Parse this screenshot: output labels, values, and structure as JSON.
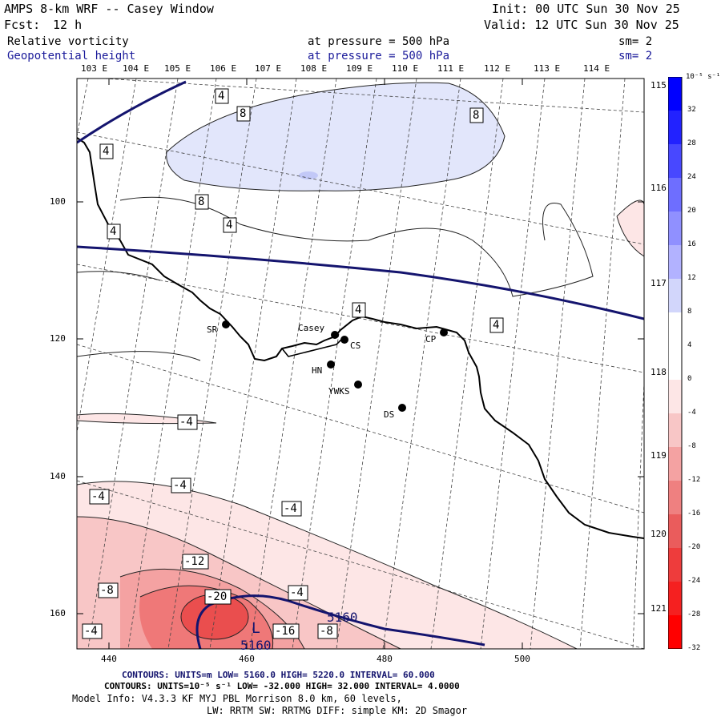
{
  "header": {
    "model": "AMPS 8-km WRF -- Casey Window",
    "init": "Init: 00 UTC Sun 30 Nov 25",
    "fcst_label": "Fcst:",
    "fcst_value": "12 h",
    "valid": "Valid: 12 UTC Sun 30 Nov 25",
    "field1": "Relative vorticity",
    "field1_level": "at pressure =  500 hPa",
    "field1_sm": "sm= 2",
    "field2": "Geopotential height",
    "field2_level": "at pressure =  500 hPa",
    "field2_sm": "sm= 2"
  },
  "longitude_labels_top": [
    "103 E",
    "104 E",
    "105 E",
    "106 E",
    "107 E",
    "108 E",
    "109 E",
    "110 E",
    "111 E",
    "112 E",
    "113 E",
    "114 E"
  ],
  "longitude_labels_right": [
    "115 E",
    "116 E",
    "117 E",
    "118 E",
    "119 E",
    "120 E",
    "121 E"
  ],
  "y_axis_ticks": [
    "100",
    "120",
    "140",
    "160"
  ],
  "x_axis_ticks": [
    "440",
    "460",
    "480",
    "500"
  ],
  "stations": [
    {
      "name": "SR"
    },
    {
      "name": "Casey"
    },
    {
      "name": "CS"
    },
    {
      "name": "CP"
    },
    {
      "name": "HN"
    },
    {
      "name": "YWKS"
    },
    {
      "name": "DS"
    }
  ],
  "contour_labels": [
    "4",
    "8",
    "8",
    "4",
    "8",
    "4",
    "4",
    "4",
    "4",
    "-4",
    "-4",
    "-4",
    "-4",
    "-12",
    "-8",
    "-20",
    "-4",
    "-16",
    "-8",
    "-4"
  ],
  "height_labels": {
    "h1": "5160",
    "h2": "5160",
    "low": "L"
  },
  "colorbar": {
    "unit": "10⁻⁵ s⁻¹",
    "ticks": [
      "32",
      "28",
      "24",
      "20",
      "16",
      "12",
      "8",
      "4",
      "0",
      "-4",
      "-8",
      "-12",
      "-16",
      "-20",
      "-24",
      "-28",
      "-32"
    ]
  },
  "footer": {
    "line1": "CONTOURS: UNITS=m  LOW=  5160.0        HIGH=  5220.0        INTERVAL=   60.000",
    "line2": "CONTOURS: UNITS=10⁻⁵ s⁻¹  LOW= -32.000     HIGH=  32.000     INTERVAL=   4.0000",
    "line3": "Model Info: V4.3.3   KF      MYJ PBL  Morrison              8.0 km,  60 levels,",
    "line4": "LW: RRTM SW: RRTMG   DIFF: simple KM: 2D Smagor"
  },
  "colors": {
    "neg_light": "#fde6e6",
    "neg_mid": "#f8c6c6",
    "neg_mid2": "#f4a2a2",
    "neg_strong": "#ef7878",
    "neg_core": "#ea4e4e",
    "pos_light": "#e2e6fb",
    "pos_mid": "#c2c8f7",
    "height_line": "#14146e"
  }
}
